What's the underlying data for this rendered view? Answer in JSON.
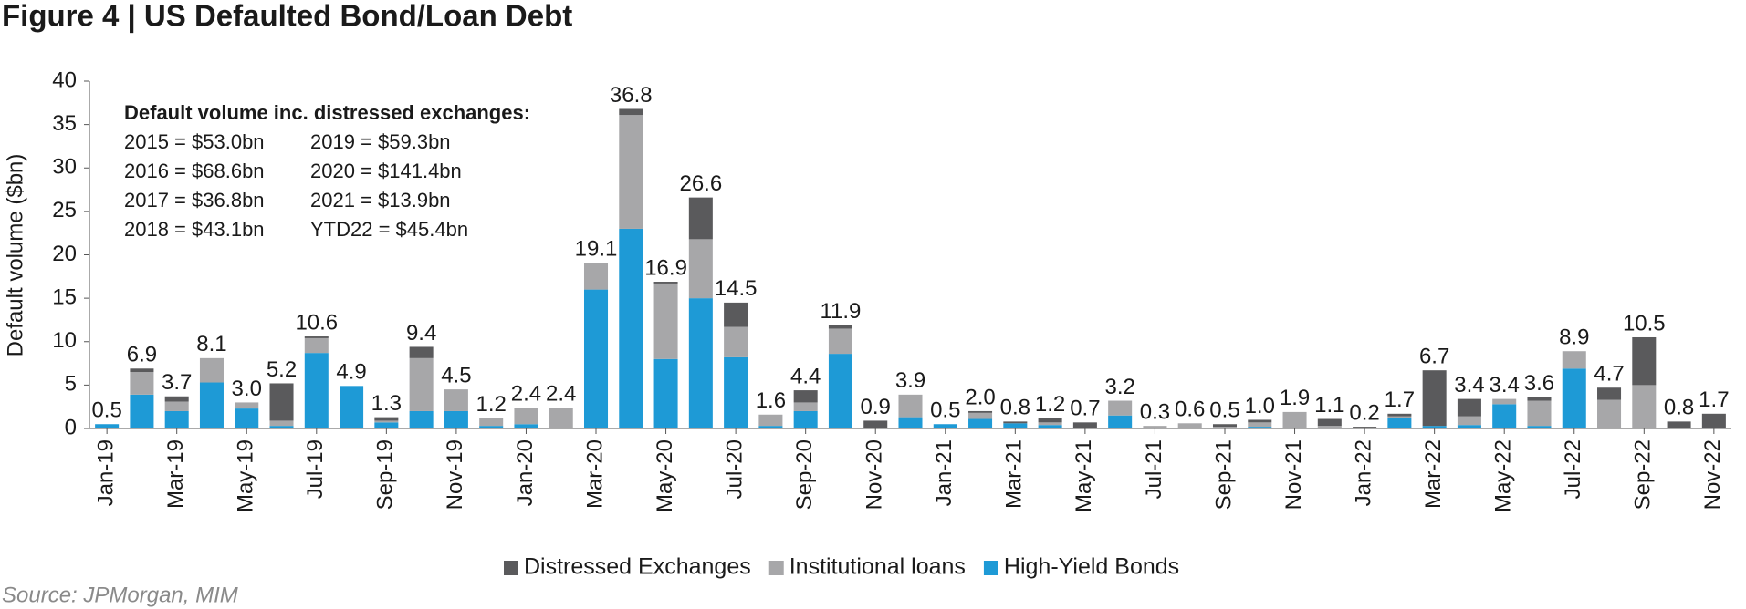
{
  "chart_data": {
    "type": "stacked_bar",
    "title": "Figure 4  |  US Defaulted Bond/Loan Debt",
    "y_label": "Default volume ($bn)",
    "source": "Source: JPMorgan, MIM",
    "annotation": {
      "title": "Default volume inc. distressed exchanges:",
      "rows": [
        [
          "2015 = $53.0bn",
          "2019 = $59.3bn"
        ],
        [
          "2016 = $68.6bn",
          "2020 = $141.4bn"
        ],
        [
          "2017 = $36.8bn",
          "2021 = $13.9bn"
        ],
        [
          "2018 = $43.1bn",
          "YTD22 = $45.4bn"
        ]
      ]
    },
    "categories": [
      "Jan-19",
      null,
      "Mar-19",
      null,
      "May-19",
      null,
      "Jul-19",
      null,
      "Sep-19",
      null,
      "Nov-19",
      null,
      "Jan-20",
      null,
      "Mar-20",
      null,
      "May-20",
      null,
      "Jul-20",
      null,
      "Sep-20",
      null,
      "Nov-20",
      null,
      "Jan-21",
      null,
      "Mar-21",
      null,
      "May-21",
      null,
      "Jul-21",
      null,
      "Sep-21",
      null,
      "Nov-21",
      null,
      "Jan-22",
      null,
      "Mar-22",
      null,
      "May-22",
      null,
      "Jul-22",
      null,
      "Sep-22",
      null,
      "Nov-22"
    ],
    "series": [
      {
        "name": "Distressed Exchanges",
        "color": "#5a5a5c",
        "values": [
          0,
          0.4,
          0.6,
          0,
          0,
          4.3,
          0.2,
          0,
          0.4,
          1.3,
          0,
          0,
          0,
          0,
          0,
          0.7,
          0.2,
          4.8,
          2.8,
          0,
          1.4,
          0.4,
          0.9,
          0,
          0,
          0.2,
          0.2,
          0.5,
          0.6,
          0,
          0,
          0,
          0.3,
          0.3,
          0,
          0.8,
          0.2,
          0.3,
          6.4,
          2.0,
          0,
          0.4,
          0,
          1.4,
          5.5,
          0.8,
          1.7
        ]
      },
      {
        "name": "Institutional loans",
        "color": "#a7a7a9",
        "values": [
          0,
          2.6,
          1.1,
          2.8,
          0.7,
          0.6,
          1.7,
          0,
          0.2,
          6.1,
          2.5,
          0.9,
          1.9,
          2.4,
          3.1,
          13.1,
          8.7,
          6.8,
          3.5,
          1.3,
          1.0,
          2.9,
          0,
          2.6,
          0,
          0.7,
          0,
          0.3,
          0,
          1.7,
          0.3,
          0.6,
          0.2,
          0.5,
          1.9,
          0.2,
          0,
          0.2,
          0,
          1.0,
          0.6,
          2.9,
          2.0,
          3.3,
          5.0,
          0,
          0
        ]
      },
      {
        "name": "High-Yield Bonds",
        "color": "#1e9ad6",
        "values": [
          0.5,
          3.9,
          2.0,
          5.3,
          2.3,
          0.3,
          8.7,
          4.9,
          0.7,
          2.0,
          2.0,
          0.3,
          0.5,
          0,
          16.0,
          23.0,
          8.0,
          15.0,
          8.2,
          0.3,
          2.0,
          8.6,
          0,
          1.3,
          0.5,
          1.1,
          0.6,
          0.4,
          0.1,
          1.5,
          0,
          0,
          0,
          0.2,
          0,
          0.1,
          0,
          1.2,
          0.3,
          0.4,
          2.8,
          0.3,
          6.9,
          0,
          0,
          0,
          0
        ]
      }
    ],
    "totals": [
      0.5,
      6.9,
      3.7,
      8.1,
      3.0,
      5.2,
      10.6,
      4.9,
      1.3,
      9.4,
      4.5,
      1.2,
      2.4,
      2.4,
      19.1,
      36.8,
      16.9,
      26.6,
      14.5,
      1.6,
      4.4,
      11.9,
      0.9,
      3.9,
      0.5,
      2.0,
      0.8,
      1.2,
      0.7,
      3.2,
      0.3,
      0.6,
      0.5,
      1.0,
      1.9,
      1.1,
      0.2,
      1.7,
      6.7,
      3.4,
      3.4,
      3.6,
      8.9,
      4.7,
      10.5,
      0.8,
      1.7
    ],
    "total_labels": [
      "0.5",
      "6.9",
      "3.7",
      "8.1",
      "3.0",
      "5.2",
      "10.6",
      "4.9",
      "1.3",
      "9.4",
      "4.5",
      "1.2",
      "2.4",
      "2.4",
      "19.1",
      "36.8",
      "16.9",
      "26.6",
      "14.5",
      "1.6",
      "4.4",
      "11.9",
      "0.9",
      "3.9",
      "0.5",
      "2.0",
      "0.8",
      "1.2",
      "0.7",
      "3.2",
      "0.3",
      "0.6",
      "0.5",
      "1.0",
      "1.9",
      "1.1",
      "0.2",
      "1.7",
      "6.7",
      "3.4",
      "3.4",
      "3.6",
      "8.9",
      "4.7",
      "10.5",
      "0.8",
      "1.7"
    ],
    "ylim": [
      0,
      40
    ],
    "yticks": [
      0,
      5,
      10,
      15,
      20,
      25,
      30,
      35,
      40
    ],
    "grid": false,
    "legend": "bottom"
  }
}
